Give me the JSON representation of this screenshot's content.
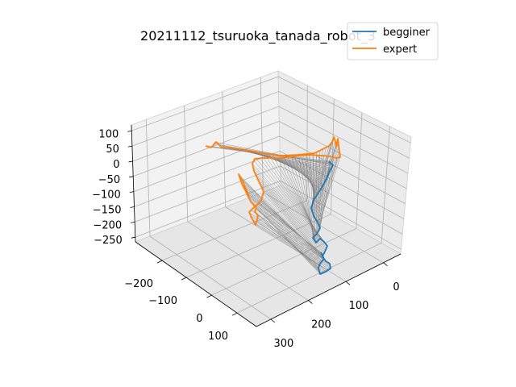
{
  "chart_data": {
    "type": "line",
    "projection": "3d",
    "title": "20211112_tsuruoka_tanada_robot_3",
    "xlabel": "",
    "ylabel": "",
    "zlabel": "",
    "x_ticks": [
      "0",
      "100",
      "200",
      "300"
    ],
    "y_ticks": [
      "−200",
      "−100",
      "0",
      "100"
    ],
    "z_ticks": [
      "100",
      "50",
      "0",
      "−50",
      "−100",
      "−150",
      "−200",
      "−250"
    ],
    "grid": true,
    "legend_position": "upper-right",
    "connectors": {
      "color": "#808080",
      "description": "thin grey lines linking corresponding points of the two series"
    },
    "series": [
      {
        "name": "begginer",
        "color": "#1f77b4"
      },
      {
        "name": "expert",
        "color": "#ff7f0e"
      }
    ]
  }
}
